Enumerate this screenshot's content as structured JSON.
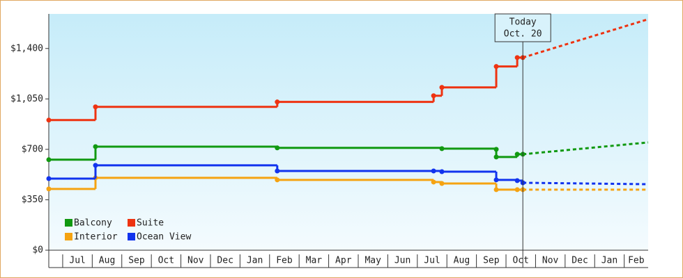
{
  "chart_data": {
    "type": "step-line",
    "xlim": [
      -0.47,
      19.81
    ],
    "xticks": [
      {
        "value": 0,
        "label": "Jul"
      },
      {
        "value": 1,
        "label": "Aug"
      },
      {
        "value": 2,
        "label": "Sep"
      },
      {
        "value": 3,
        "label": "Oct"
      },
      {
        "value": 4,
        "label": "Nov"
      },
      {
        "value": 5,
        "label": "Dec"
      },
      {
        "value": 6,
        "label": "Jan"
      },
      {
        "value": 7,
        "label": "Feb"
      },
      {
        "value": 8,
        "label": "Mar"
      },
      {
        "value": 9,
        "label": "Apr"
      },
      {
        "value": 10,
        "label": "May"
      },
      {
        "value": 11,
        "label": "Jun"
      },
      {
        "value": 12,
        "label": "Jul"
      },
      {
        "value": 13,
        "label": "Aug"
      },
      {
        "value": 14,
        "label": "Sep"
      },
      {
        "value": 15,
        "label": "Oct"
      },
      {
        "value": 16,
        "label": "Nov"
      },
      {
        "value": 17,
        "label": "Dec"
      },
      {
        "value": 18,
        "label": "Jan"
      },
      {
        "value": 19,
        "label": "Feb"
      }
    ],
    "ylim": [
      0,
      1640
    ],
    "yticks": [
      {
        "value": 0,
        "label": "$0"
      },
      {
        "value": 350,
        "label": "$350"
      },
      {
        "value": 700,
        "label": "$700"
      },
      {
        "value": 1050,
        "label": "$1,050"
      },
      {
        "value": 1400,
        "label": "$1,400"
      }
    ],
    "annotation": {
      "x": 15.57,
      "lines": [
        "Today",
        "Oct. 20"
      ]
    },
    "forecast_x": [
      15.57,
      19.81
    ],
    "series": [
      {
        "name": "Balcony",
        "color": "#119911",
        "x": [
          -0.47,
          1.11,
          7.26,
          12.83,
          14.67,
          14.67,
          15.38,
          15.57
        ],
        "values": [
          628,
          719,
          710,
          705,
          700,
          647,
          666,
          666
        ],
        "forecast_values": [
          666,
          748
        ]
      },
      {
        "name": "Suite",
        "color": "#ee3311",
        "x": [
          -0.47,
          1.11,
          7.26,
          12.55,
          12.83,
          14.67,
          15.38,
          15.57
        ],
        "values": [
          903,
          995,
          1029,
          1072,
          1130,
          1275,
          1337,
          1337
        ],
        "forecast_values": [
          1337,
          1603
        ]
      },
      {
        "name": "Interior",
        "color": "#f5a311",
        "x": [
          -0.47,
          1.11,
          7.26,
          12.55,
          12.83,
          14.67,
          15.38,
          15.57
        ],
        "values": [
          425,
          502,
          488,
          473,
          463,
          420,
          420,
          420
        ],
        "forecast_values": [
          420,
          420
        ]
      },
      {
        "name": "Ocean View",
        "color": "#1133ee",
        "x": [
          -0.47,
          1.11,
          7.26,
          12.55,
          12.83,
          14.67,
          15.38,
          15.57
        ],
        "values": [
          497,
          589,
          550,
          550,
          545,
          488,
          483,
          468
        ],
        "forecast_values": [
          468,
          458
        ]
      }
    ]
  }
}
